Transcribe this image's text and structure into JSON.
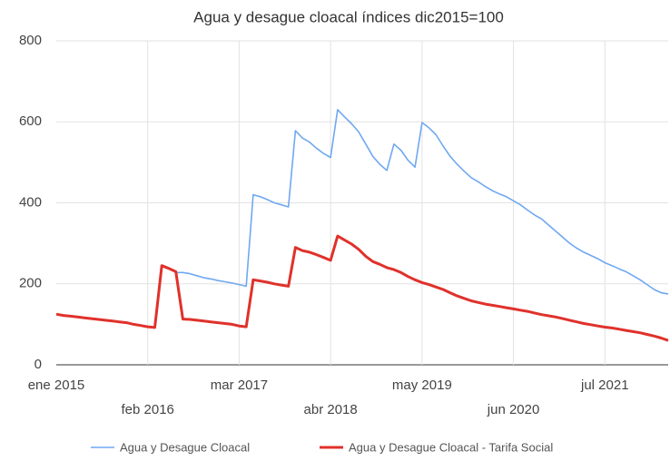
{
  "chart_data": {
    "type": "line",
    "title": "Agua y desague cloacal índices dic2015=100",
    "categories": [
      "ene 2015",
      null,
      null,
      null,
      null,
      null,
      null,
      null,
      null,
      null,
      null,
      null,
      null,
      "feb 2016",
      null,
      null,
      null,
      null,
      null,
      null,
      null,
      null,
      null,
      null,
      null,
      null,
      "mar 2017",
      null,
      null,
      null,
      null,
      null,
      null,
      null,
      null,
      null,
      null,
      null,
      null,
      "abr 2018",
      null,
      null,
      null,
      null,
      null,
      null,
      null,
      null,
      null,
      null,
      null,
      null,
      "may 2019",
      null,
      null,
      null,
      null,
      null,
      null,
      null,
      null,
      null,
      null,
      null,
      null,
      "jun 2020",
      null,
      null,
      null,
      null,
      null,
      null,
      null,
      null,
      null,
      null,
      null,
      null,
      "jul 2021",
      null,
      null,
      null,
      null,
      null,
      null,
      null,
      null,
      null
    ],
    "series": [
      {
        "name": "Agua y Desague Cloacal",
        "color": "#6fa8f0",
        "values": [
          null,
          null,
          null,
          null,
          null,
          null,
          null,
          null,
          null,
          null,
          null,
          null,
          null,
          null,
          null,
          null,
          null,
          228,
          228,
          225,
          220,
          215,
          212,
          208,
          205,
          202,
          198,
          194,
          420,
          415,
          408,
          400,
          395,
          390,
          578,
          560,
          550,
          535,
          522,
          512,
          630,
          612,
          595,
          575,
          545,
          515,
          495,
          480,
          545,
          530,
          505,
          488,
          598,
          585,
          568,
          540,
          515,
          495,
          478,
          462,
          452,
          440,
          430,
          422,
          415,
          405,
          395,
          382,
          370,
          360,
          345,
          330,
          315,
          300,
          288,
          278,
          270,
          262,
          252,
          245,
          237,
          230,
          220,
          210,
          198,
          186,
          178,
          175
        ]
      },
      {
        "name": "Agua y Desague Cloacal - Tarifa Social",
        "color": "#e0312b",
        "values": [
          125,
          122,
          120,
          118,
          116,
          114,
          112,
          110,
          108,
          106,
          104,
          100,
          97,
          94,
          92,
          245,
          238,
          230,
          113,
          112,
          110,
          108,
          106,
          104,
          102,
          100,
          96,
          94,
          210,
          207,
          204,
          200,
          197,
          194,
          290,
          282,
          278,
          272,
          265,
          258,
          318,
          308,
          298,
          285,
          268,
          255,
          248,
          240,
          235,
          228,
          218,
          210,
          203,
          198,
          192,
          186,
          178,
          170,
          164,
          158,
          154,
          150,
          147,
          144,
          141,
          138,
          135,
          132,
          128,
          124,
          121,
          118,
          114,
          110,
          106,
          102,
          99,
          96,
          93,
          91,
          88,
          85,
          82,
          79,
          75,
          71,
          66,
          60
        ]
      }
    ],
    "ylim": [
      0,
      800
    ],
    "yticks": [
      0,
      200,
      400,
      600,
      800
    ],
    "grid": true,
    "legend": "bottom"
  }
}
